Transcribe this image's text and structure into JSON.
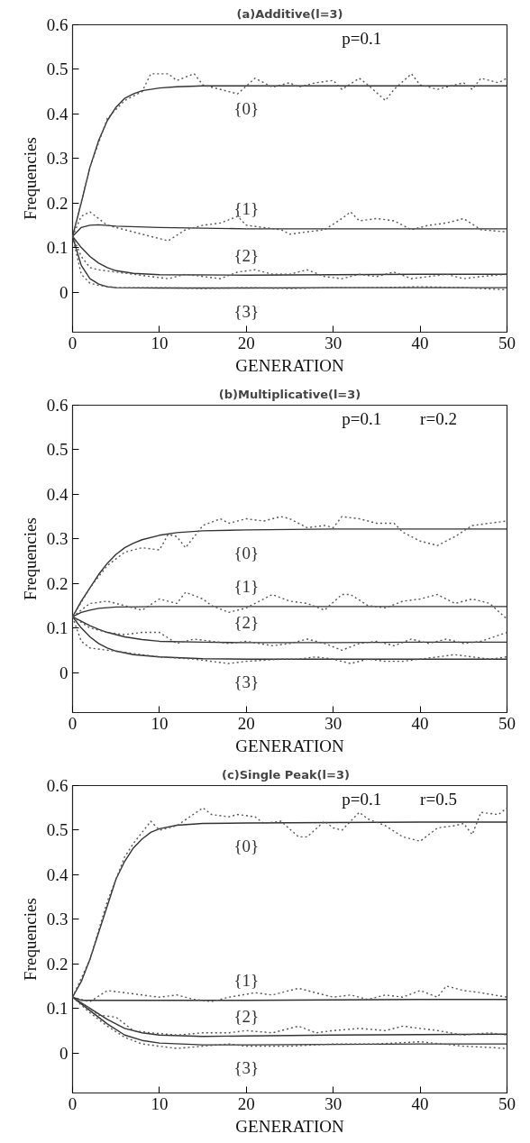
{
  "chart_data": [
    {
      "type": "line",
      "title": "(a)Additive(l=3)",
      "xlabel": "GENERATION",
      "ylabel": "Frequencies",
      "xlim": [
        0,
        50
      ],
      "xticks": [
        0,
        10,
        20,
        30,
        40,
        50
      ],
      "ylim": [
        -0.09,
        0.6
      ],
      "yticks": [
        0,
        0.1,
        0.2,
        0.3,
        0.4,
        0.5,
        0.6
      ],
      "grid": false,
      "legend": false,
      "marker": "none",
      "annotations": [
        "p=0.1"
      ],
      "series": [
        {
          "name": "{0}",
          "color": "#333333",
          "line_style": "solid",
          "x": [
            0,
            1,
            2,
            3,
            4,
            5,
            6,
            7,
            8,
            10,
            12,
            15,
            20,
            30,
            40,
            50
          ],
          "values": [
            0.125,
            0.2,
            0.28,
            0.34,
            0.385,
            0.415,
            0.435,
            0.445,
            0.452,
            0.458,
            0.461,
            0.463,
            0.463,
            0.463,
            0.463,
            0.463
          ]
        },
        {
          "name": "{1}",
          "color": "#333333",
          "line_style": "solid",
          "x": [
            0,
            1,
            2,
            3,
            5,
            10,
            20,
            30,
            40,
            50
          ],
          "values": [
            0.125,
            0.145,
            0.15,
            0.151,
            0.148,
            0.145,
            0.142,
            0.142,
            0.142,
            0.142
          ]
        },
        {
          "name": "{2}",
          "color": "#333333",
          "line_style": "solid",
          "x": [
            0,
            1,
            2,
            3,
            4,
            5,
            7,
            10,
            20,
            30,
            40,
            50
          ],
          "values": [
            0.125,
            0.1,
            0.08,
            0.065,
            0.055,
            0.048,
            0.042,
            0.039,
            0.038,
            0.039,
            0.04,
            0.04
          ]
        },
        {
          "name": "{3}",
          "color": "#333333",
          "line_style": "solid",
          "x": [
            0,
            1,
            2,
            3,
            4,
            5,
            10,
            20,
            30,
            40,
            50
          ],
          "values": [
            0.125,
            0.06,
            0.03,
            0.018,
            0.012,
            0.01,
            0.009,
            0.009,
            0.01,
            0.01,
            0.01
          ]
        },
        {
          "color": "#555555",
          "line_style": "dotted",
          "x": [
            0,
            2,
            4,
            6,
            8,
            9,
            11,
            12,
            14,
            15,
            18,
            19,
            21,
            23,
            25,
            26,
            28,
            30,
            31,
            33,
            34,
            36,
            37,
            39,
            40,
            42,
            44,
            45,
            46,
            47,
            49,
            50
          ],
          "values": [
            0.125,
            0.28,
            0.39,
            0.43,
            0.45,
            0.49,
            0.49,
            0.475,
            0.49,
            0.465,
            0.45,
            0.445,
            0.48,
            0.46,
            0.47,
            0.46,
            0.47,
            0.475,
            0.455,
            0.48,
            0.465,
            0.43,
            0.455,
            0.49,
            0.465,
            0.455,
            0.465,
            0.47,
            0.455,
            0.48,
            0.47,
            0.48
          ]
        },
        {
          "color": "#555555",
          "line_style": "dotted",
          "x": [
            0,
            1,
            2,
            4,
            6,
            8,
            10,
            11,
            13,
            15,
            17,
            19,
            20,
            22,
            24,
            25,
            27,
            29,
            31,
            32,
            33,
            35,
            37,
            39,
            41,
            43,
            45,
            47,
            50
          ],
          "values": [
            0.125,
            0.17,
            0.18,
            0.15,
            0.14,
            0.13,
            0.12,
            0.115,
            0.14,
            0.15,
            0.155,
            0.17,
            0.15,
            0.145,
            0.14,
            0.13,
            0.135,
            0.14,
            0.165,
            0.18,
            0.16,
            0.165,
            0.16,
            0.14,
            0.15,
            0.155,
            0.165,
            0.14,
            0.135
          ]
        },
        {
          "color": "#555555",
          "line_style": "dotted",
          "x": [
            0,
            1,
            2,
            3,
            5,
            7,
            9,
            11,
            13,
            15,
            17,
            19,
            21,
            23,
            25,
            27,
            29,
            31,
            33,
            35,
            37,
            39,
            41,
            43,
            45,
            47,
            50
          ],
          "values": [
            0.125,
            0.08,
            0.055,
            0.05,
            0.045,
            0.04,
            0.035,
            0.03,
            0.04,
            0.035,
            0.03,
            0.045,
            0.05,
            0.04,
            0.04,
            0.05,
            0.035,
            0.03,
            0.04,
            0.035,
            0.045,
            0.03,
            0.035,
            0.04,
            0.03,
            0.035,
            0.04
          ]
        },
        {
          "color": "#555555",
          "line_style": "dotted",
          "x": [
            0,
            1,
            2,
            3,
            5,
            10,
            15,
            20,
            25,
            30,
            35,
            40,
            45,
            50
          ],
          "values": [
            0.125,
            0.04,
            0.02,
            0.015,
            0.01,
            0.01,
            0.008,
            0.01,
            0.008,
            0.01,
            0.01,
            0.012,
            0.01,
            0.005
          ]
        }
      ]
    },
    {
      "type": "line",
      "title": "(b)Multiplicative(l=3)",
      "xlabel": "GENERATION",
      "ylabel": "Frequencies",
      "xlim": [
        0,
        50
      ],
      "xticks": [
        0,
        10,
        20,
        30,
        40,
        50
      ],
      "ylim": [
        -0.09,
        0.6
      ],
      "yticks": [
        0,
        0.1,
        0.2,
        0.3,
        0.4,
        0.5,
        0.6
      ],
      "grid": false,
      "legend": false,
      "marker": "none",
      "annotations": [
        "p=0.1",
        "r=0.2"
      ],
      "series": [
        {
          "name": "{0}",
          "color": "#333333",
          "line_style": "solid",
          "x": [
            0,
            1,
            2,
            3,
            4,
            5,
            6,
            7,
            8,
            10,
            12,
            15,
            20,
            30,
            40,
            50
          ],
          "values": [
            0.125,
            0.16,
            0.19,
            0.22,
            0.245,
            0.265,
            0.28,
            0.29,
            0.298,
            0.308,
            0.314,
            0.318,
            0.32,
            0.322,
            0.322,
            0.322
          ]
        },
        {
          "name": "{1}",
          "color": "#333333",
          "line_style": "solid",
          "x": [
            0,
            1,
            2,
            3,
            5,
            10,
            20,
            30,
            40,
            50
          ],
          "values": [
            0.125,
            0.135,
            0.14,
            0.144,
            0.147,
            0.148,
            0.148,
            0.148,
            0.148,
            0.148
          ]
        },
        {
          "name": "{2}",
          "color": "#333333",
          "line_style": "solid",
          "x": [
            0,
            1,
            2,
            3,
            4,
            6,
            8,
            10,
            15,
            20,
            30,
            40,
            50
          ],
          "values": [
            0.125,
            0.115,
            0.105,
            0.097,
            0.09,
            0.08,
            0.074,
            0.07,
            0.068,
            0.067,
            0.067,
            0.068,
            0.068
          ]
        },
        {
          "name": "{3}",
          "color": "#333333",
          "line_style": "solid",
          "x": [
            0,
            1,
            2,
            3,
            4,
            5,
            7,
            10,
            15,
            20,
            30,
            40,
            50
          ],
          "values": [
            0.125,
            0.1,
            0.08,
            0.065,
            0.055,
            0.048,
            0.04,
            0.035,
            0.031,
            0.03,
            0.03,
            0.03,
            0.03
          ]
        },
        {
          "color": "#555555",
          "line_style": "dotted",
          "x": [
            0,
            2,
            4,
            6,
            8,
            10,
            11,
            12,
            13,
            15,
            17,
            18,
            20,
            22,
            24,
            25,
            27,
            29,
            30,
            31,
            33,
            35,
            37,
            38,
            40,
            42,
            44,
            46,
            48,
            50
          ],
          "values": [
            0.125,
            0.19,
            0.24,
            0.27,
            0.28,
            0.275,
            0.31,
            0.305,
            0.28,
            0.33,
            0.345,
            0.335,
            0.345,
            0.34,
            0.35,
            0.345,
            0.325,
            0.33,
            0.325,
            0.35,
            0.345,
            0.335,
            0.335,
            0.315,
            0.295,
            0.285,
            0.305,
            0.33,
            0.335,
            0.34
          ]
        },
        {
          "color": "#555555",
          "line_style": "dotted",
          "x": [
            0,
            2,
            4,
            6,
            8,
            10,
            12,
            13,
            15,
            16,
            18,
            20,
            23,
            25,
            27,
            29,
            31,
            32,
            34,
            36,
            38,
            40,
            42,
            44,
            46,
            48,
            50
          ],
          "values": [
            0.125,
            0.155,
            0.16,
            0.15,
            0.14,
            0.165,
            0.155,
            0.18,
            0.165,
            0.15,
            0.135,
            0.145,
            0.175,
            0.16,
            0.155,
            0.14,
            0.175,
            0.175,
            0.15,
            0.145,
            0.16,
            0.165,
            0.175,
            0.155,
            0.165,
            0.155,
            0.12
          ]
        },
        {
          "color": "#555555",
          "line_style": "dotted",
          "x": [
            0,
            2,
            4,
            6,
            8,
            10,
            12,
            14,
            16,
            18,
            20,
            23,
            25,
            27,
            29,
            31,
            33,
            35,
            37,
            39,
            41,
            43,
            45,
            47,
            50
          ],
          "values": [
            0.125,
            0.1,
            0.09,
            0.085,
            0.09,
            0.09,
            0.065,
            0.075,
            0.07,
            0.065,
            0.07,
            0.06,
            0.065,
            0.075,
            0.065,
            0.05,
            0.065,
            0.07,
            0.06,
            0.075,
            0.065,
            0.075,
            0.065,
            0.07,
            0.09
          ]
        },
        {
          "color": "#555555",
          "line_style": "dotted",
          "x": [
            0,
            1,
            2,
            4,
            6,
            8,
            10,
            14,
            18,
            20,
            24,
            26,
            28,
            30,
            32,
            34,
            36,
            38,
            40,
            42,
            44,
            46,
            48,
            50
          ],
          "values": [
            0.125,
            0.07,
            0.055,
            0.05,
            0.045,
            0.04,
            0.035,
            0.03,
            0.02,
            0.025,
            0.03,
            0.03,
            0.035,
            0.03,
            0.02,
            0.03,
            0.025,
            0.025,
            0.03,
            0.035,
            0.04,
            0.035,
            0.03,
            0.035
          ]
        }
      ]
    },
    {
      "type": "line",
      "title": "(c)Single   Peak(l=3)",
      "xlabel": "GENERATION",
      "ylabel": "Frequencies",
      "xlim": [
        0,
        50
      ],
      "xticks": [
        0,
        10,
        20,
        30,
        40,
        50
      ],
      "ylim": [
        -0.09,
        0.6
      ],
      "yticks": [
        0,
        0.1,
        0.2,
        0.3,
        0.4,
        0.5,
        0.6
      ],
      "grid": false,
      "legend": false,
      "marker": "none",
      "annotations": [
        "p=0.1",
        "r=0.5"
      ],
      "series": [
        {
          "name": "{0}",
          "color": "#333333",
          "line_style": "solid",
          "x": [
            0,
            1,
            2,
            3,
            4,
            5,
            6,
            7,
            8,
            9,
            10,
            12,
            15,
            20,
            30,
            40,
            50
          ],
          "values": [
            0.125,
            0.16,
            0.21,
            0.27,
            0.33,
            0.39,
            0.43,
            0.46,
            0.48,
            0.495,
            0.503,
            0.511,
            0.515,
            0.516,
            0.517,
            0.518,
            0.518
          ]
        },
        {
          "name": "{1}",
          "color": "#333333",
          "line_style": "solid",
          "x": [
            0,
            1,
            5,
            10,
            20,
            30,
            40,
            50
          ],
          "values": [
            0.125,
            0.118,
            0.118,
            0.118,
            0.118,
            0.119,
            0.12,
            0.12
          ]
        },
        {
          "name": "{2}",
          "color": "#333333",
          "line_style": "solid",
          "x": [
            0,
            2,
            4,
            6,
            8,
            10,
            15,
            20,
            30,
            40,
            50
          ],
          "values": [
            0.125,
            0.1,
            0.075,
            0.055,
            0.045,
            0.04,
            0.037,
            0.038,
            0.04,
            0.041,
            0.042
          ]
        },
        {
          "name": "{3}",
          "color": "#333333",
          "line_style": "solid",
          "x": [
            0,
            2,
            4,
            6,
            8,
            10,
            15,
            20,
            30,
            40,
            50
          ],
          "values": [
            0.125,
            0.095,
            0.065,
            0.04,
            0.028,
            0.022,
            0.018,
            0.018,
            0.019,
            0.02,
            0.02
          ]
        },
        {
          "color": "#555555",
          "line_style": "dotted",
          "x": [
            0,
            2,
            4,
            6,
            7,
            9,
            10,
            12,
            15,
            16,
            18,
            19,
            21,
            22,
            24,
            26,
            27,
            29,
            30,
            31,
            33,
            34,
            36,
            38,
            40,
            42,
            44,
            45,
            46,
            47,
            49,
            50
          ],
          "values": [
            0.125,
            0.21,
            0.34,
            0.44,
            0.47,
            0.52,
            0.5,
            0.51,
            0.55,
            0.535,
            0.53,
            0.535,
            0.53,
            0.515,
            0.52,
            0.485,
            0.485,
            0.52,
            0.505,
            0.5,
            0.54,
            0.525,
            0.51,
            0.485,
            0.475,
            0.505,
            0.51,
            0.515,
            0.49,
            0.54,
            0.535,
            0.55
          ]
        },
        {
          "color": "#555555",
          "line_style": "dotted",
          "x": [
            0,
            2,
            4,
            6,
            8,
            10,
            12,
            14,
            16,
            18,
            21,
            23,
            26,
            28,
            30,
            32,
            34,
            36,
            38,
            40,
            42,
            43,
            45,
            47,
            50
          ],
          "values": [
            0.125,
            0.115,
            0.14,
            0.135,
            0.13,
            0.125,
            0.13,
            0.12,
            0.115,
            0.125,
            0.135,
            0.13,
            0.145,
            0.135,
            0.125,
            0.13,
            0.12,
            0.13,
            0.125,
            0.14,
            0.125,
            0.15,
            0.14,
            0.135,
            0.125
          ]
        },
        {
          "color": "#555555",
          "line_style": "dotted",
          "x": [
            0,
            2,
            3,
            5,
            7,
            9,
            12,
            15,
            18,
            20,
            23,
            26,
            28,
            30,
            33,
            36,
            38,
            40,
            42,
            45,
            48,
            50
          ],
          "values": [
            0.125,
            0.1,
            0.085,
            0.08,
            0.05,
            0.045,
            0.04,
            0.045,
            0.045,
            0.05,
            0.045,
            0.06,
            0.045,
            0.05,
            0.055,
            0.05,
            0.06,
            0.055,
            0.05,
            0.04,
            0.045,
            0.04
          ]
        },
        {
          "color": "#555555",
          "line_style": "dotted",
          "x": [
            0,
            2,
            4,
            6,
            8,
            10,
            12,
            15,
            18,
            20,
            25,
            30,
            35,
            40,
            45,
            50
          ],
          "values": [
            0.125,
            0.09,
            0.06,
            0.035,
            0.02,
            0.015,
            0.01,
            0.015,
            0.02,
            0.015,
            0.015,
            0.02,
            0.02,
            0.025,
            0.015,
            0.01
          ]
        }
      ]
    }
  ]
}
